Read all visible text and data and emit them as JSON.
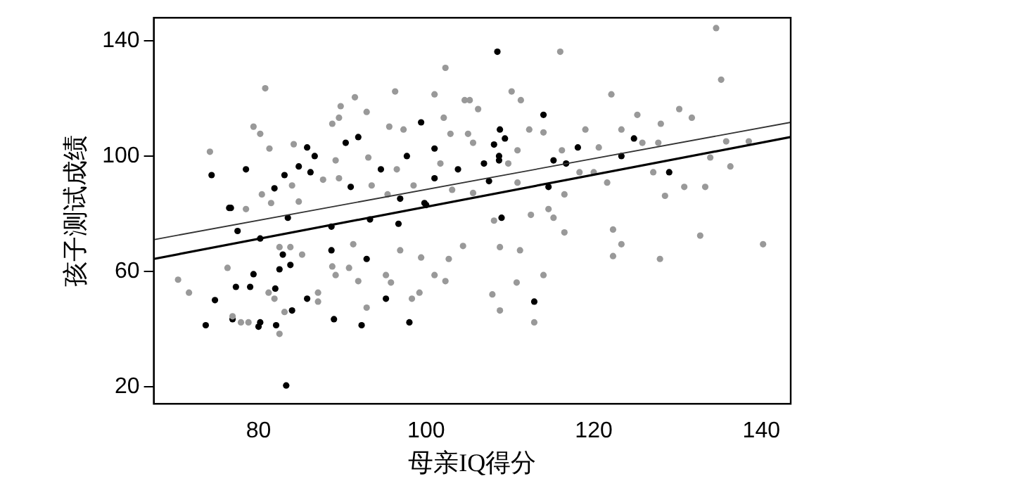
{
  "chart_data": {
    "type": "scatter",
    "xlabel": "母亲IQ得分",
    "ylabel": "孩子测试成绩",
    "xlim": [
      67.5,
      143.5
    ],
    "ylim": [
      14,
      148
    ],
    "xticks": [
      80,
      100,
      120,
      140
    ],
    "yticks": [
      20,
      60,
      100,
      140
    ],
    "grid": false,
    "legend": false,
    "marker": "circle",
    "series": [
      {
        "color": "#999999",
        "x": [
          74.2,
          80.8,
          79.4,
          80.2,
          81.3,
          84.2,
          89.8,
          91.5,
          92.9,
          96.3,
          102.3,
          101,
          104.6,
          88.8,
          89.6,
          95.6,
          97.3,
          102.1,
          102.9,
          105,
          89.2,
          93.1,
          96.5,
          101.7,
          87.7,
          84,
          80.4,
          93.5,
          98.5,
          95.4,
          103.1,
          78.5,
          89.6,
          84.8,
          81.5,
          134.6,
          135.2,
          116,
          110.2,
          111.3,
          122.1,
          130.2,
          131.7,
          125.2,
          128,
          106.2,
          105.2,
          119,
          123.3,
          112.3,
          114,
          105.6,
          110.9,
          116.2,
          120.6,
          125.8,
          127.7,
          135.8,
          138.5,
          133.9,
          136.3,
          127.1,
          118.3,
          120,
          121.6,
          130.8,
          133.3,
          110.9,
          105.6,
          116.5,
          128.5,
          114.6,
          109.8,
          70.4,
          71.7,
          76.3,
          76.9,
          77.9,
          78.8,
          82.5,
          83.1,
          81.9,
          81.2,
          85.2,
          87.1,
          87.1,
          89.2,
          90.8,
          91.9,
          92.9,
          95.2,
          95.8,
          98.3,
          99.2,
          101,
          102.3,
          104.4,
          102.7,
          96.9,
          99.4,
          91.3,
          88.8,
          82.5,
          83.8,
          108.1,
          112.5,
          115.2,
          116.5,
          122.3,
          123.3,
          122.3,
          127.9,
          132.7,
          140.2,
          108.8,
          111.2,
          110.8,
          114,
          107.9,
          108.8,
          112.9
        ],
        "values": [
          101.5,
          123.5,
          110.2,
          107.7,
          102.6,
          104.1,
          117.3,
          120.4,
          115.3,
          122.4,
          130.6,
          121.4,
          119.4,
          111.2,
          113.3,
          110.2,
          109.2,
          113.3,
          107.7,
          107.7,
          98.5,
          99.5,
          95.4,
          97.4,
          91.8,
          89.8,
          86.7,
          89.8,
          89.8,
          86.7,
          88.3,
          81.6,
          92.3,
          84.2,
          83.7,
          144.4,
          126.5,
          136.2,
          122.4,
          119.4,
          121.4,
          116.3,
          113.3,
          114.3,
          111.2,
          116.3,
          119.4,
          109.2,
          109.2,
          109.2,
          108.2,
          104.6,
          102,
          102,
          103,
          104.6,
          104.6,
          105.1,
          105.1,
          99.5,
          96.4,
          94.4,
          94.4,
          94.4,
          90.8,
          89.3,
          89.3,
          90.8,
          87.2,
          86.7,
          86.2,
          81.6,
          97.4,
          57.1,
          52.6,
          61.2,
          44.4,
          42.3,
          42.3,
          38.3,
          45.9,
          50.5,
          52.6,
          65.8,
          52.6,
          49.5,
          58.7,
          61.2,
          56.6,
          47.4,
          58.7,
          56.1,
          50.5,
          52.6,
          58.7,
          56.6,
          68.8,
          64.3,
          67.3,
          64.8,
          69.4,
          61.7,
          68.4,
          68.4,
          77.6,
          79.6,
          78.6,
          73.5,
          74.5,
          69.4,
          65.3,
          64.3,
          72.4,
          69.4,
          68.4,
          67.3,
          56.1,
          58.7,
          52,
          46.4,
          42.3
        ]
      },
      {
        "color": "#000000",
        "x": [
          76.7,
          73.7,
          74.8,
          76.9,
          77.3,
          79,
          79.4,
          80.2,
          80,
          80.2,
          82,
          82.1,
          82.5,
          82.9,
          83.8,
          84,
          83.3,
          85.8,
          88.7,
          89,
          92.3,
          92.9,
          95.2,
          96.7,
          98,
          88.7,
          77.5,
          93.3,
          83.5,
          100,
          74.4,
          78.5,
          83.1,
          84.8,
          85.8,
          86.7,
          86.2,
          90.4,
          91.9,
          91,
          81.9,
          94.6,
          97.7,
          99.4,
          101,
          103.8,
          101,
          76.5,
          96.9,
          99.8,
          108.5,
          114,
          108.8,
          109.4,
          108.1,
          108.7,
          108.7,
          106.9,
          115.2,
          116.7,
          118.1,
          124.8,
          123.3,
          129,
          107.5,
          114.6,
          109,
          112.9
        ],
        "values": [
          82,
          41.3,
          50,
          43.4,
          54.6,
          54.6,
          59,
          71.4,
          40.8,
          42.3,
          54,
          41.3,
          60.7,
          65.8,
          62.2,
          46.4,
          20.4,
          50.5,
          67.3,
          43.4,
          41.3,
          64.3,
          50.5,
          76.5,
          42.3,
          75.5,
          74,
          78,
          78.6,
          83,
          93.4,
          95.4,
          93.4,
          96.4,
          103,
          100,
          94.4,
          104.6,
          106.6,
          89.3,
          88.8,
          95.4,
          100,
          111.7,
          102.6,
          95.4,
          92.3,
          82,
          85.2,
          83.7,
          136.2,
          114.3,
          109.2,
          106.1,
          104,
          100,
          98.5,
          97.4,
          98.5,
          97.4,
          103,
          106.1,
          100,
          94.4,
          91.3,
          89.3,
          78.6,
          49.5
        ]
      },
      {
        "type": "line",
        "color": "#333333",
        "marker": "none",
        "x": [
          67.5,
          143.5
        ],
        "values": [
          71,
          111.7
        ]
      },
      {
        "type": "line",
        "color": "#000000",
        "marker": "none",
        "x": [
          67.5,
          143.5
        ],
        "values": [
          64.3,
          106.6
        ]
      }
    ]
  }
}
